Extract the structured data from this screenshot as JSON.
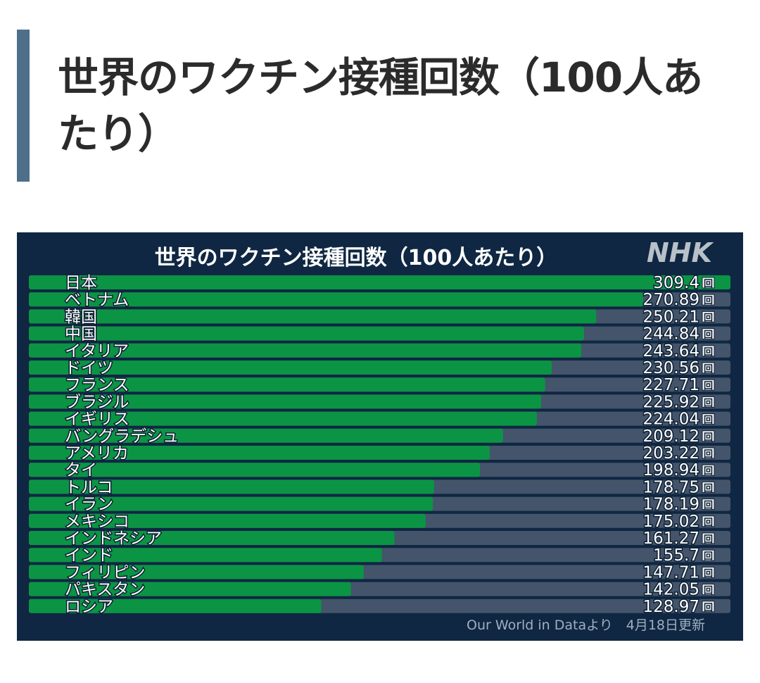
{
  "article": {
    "heading": "世界のワクチン接種回数（100人あたり）"
  },
  "colors": {
    "bar_fill": "#0b9444",
    "track": "#44546a",
    "frame_bg": "#0f2742",
    "accent_bar": "#4e6f8a"
  },
  "chart_data": {
    "type": "bar",
    "orientation": "horizontal",
    "title": "世界のワクチン接種回数（100人あたり）",
    "logo": "NHK",
    "unit": "回",
    "source": "Our World in Dataより　4月18日更新",
    "xlim": [
      0,
      309.4
    ],
    "grid": false,
    "legend": "none",
    "categories": [
      "日本",
      "ベトナム",
      "韓国",
      "中国",
      "イタリア",
      "ドイツ",
      "フランス",
      "ブラジル",
      "イギリス",
      "バングラデシュ",
      "アメリカ",
      "タイ",
      "トルコ",
      "イラン",
      "メキシコ",
      "インドネシア",
      "インド",
      "フィリピン",
      "パキスタン",
      "ロシア"
    ],
    "values": [
      309.4,
      270.89,
      250.21,
      244.84,
      243.64,
      230.56,
      227.71,
      225.92,
      224.04,
      209.12,
      203.22,
      198.94,
      178.75,
      178.19,
      175.02,
      161.27,
      155.7,
      147.71,
      142.05,
      128.97
    ],
    "value_labels": [
      "309.4",
      "270.89",
      "250.21",
      "244.84",
      "243.64",
      "230.56",
      "227.71",
      "225.92",
      "224.04",
      "209.12",
      "203.22",
      "198.94",
      "178.75",
      "178.19",
      "175.02",
      "161.27",
      "155.7",
      "147.71",
      "142.05",
      "128.97"
    ]
  }
}
